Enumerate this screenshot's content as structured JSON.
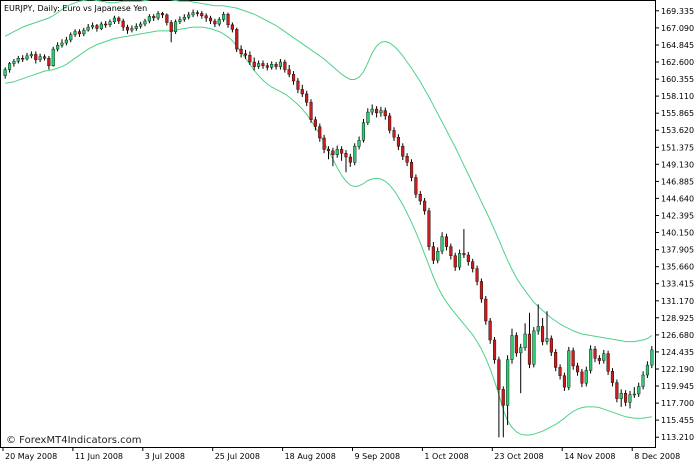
{
  "chart_data": {
    "type": "candlestick",
    "symbol_label": "EURJPY, Daily:  Euro vs Japanese Yen",
    "watermark": "© ForexMT4Indicators.com",
    "colors": {
      "bull": "#2ecc71",
      "bear": "#cc1b1b",
      "wick": "#000000",
      "band": "#4fd18a",
      "grid": "#000000",
      "background": "#ffffff"
    },
    "y_ticks": [
      "169.335",
      "167.090",
      "164.845",
      "162.600",
      "160.355",
      "158.110",
      "155.865",
      "153.620",
      "151.375",
      "149.130",
      "146.885",
      "144.640",
      "142.395",
      "140.150",
      "137.905",
      "135.660",
      "133.415",
      "131.170",
      "128.925",
      "126.680",
      "124.435",
      "122.190",
      "119.945",
      "117.700",
      "115.455",
      "113.210"
    ],
    "ylim": [
      112.05,
      170.5
    ],
    "x_ticks": [
      {
        "label": "20 May 2008",
        "index": 0
      },
      {
        "label": "11 Jun 2008",
        "index": 16
      },
      {
        "label": "3 Jul 2008",
        "index": 32
      },
      {
        "label": "25 Jul 2008",
        "index": 48
      },
      {
        "label": "18 Aug 2008",
        "index": 64
      },
      {
        "label": "9 Sep 2008",
        "index": 80
      },
      {
        "label": "1 Oct 2008",
        "index": 96
      },
      {
        "label": "23 Oct 2008",
        "index": 112
      },
      {
        "label": "14 Nov 2008",
        "index": 128
      },
      {
        "label": "8 Dec 2008",
        "index": 144
      }
    ],
    "ohlc_close": [
      162.0,
      162.4,
      162.7,
      163.1,
      163.0,
      163.4,
      163.6,
      162.9,
      163.3,
      163.1,
      162.1,
      164.3,
      164.8,
      165.1,
      165.5,
      166.2,
      166.6,
      166.3,
      166.8,
      167.2,
      167.4,
      167.0,
      167.6,
      167.5,
      167.9,
      168.4,
      168.0,
      167.2,
      166.8,
      167.0,
      167.3,
      167.6,
      168.0,
      168.6,
      168.4,
      169.0,
      168.8,
      167.8,
      166.6,
      167.9,
      168.2,
      168.5,
      168.8,
      169.1,
      169.0,
      168.7,
      168.4,
      168.0,
      167.6,
      168.2,
      168.9,
      167.5,
      166.9,
      164.3,
      163.7,
      163.5,
      162.6,
      162.0,
      162.4,
      162.1,
      161.9,
      162.3,
      162.0,
      162.6,
      161.6,
      161.0,
      160.1,
      159.0,
      158.4,
      157.3,
      155.0,
      154.1,
      152.6,
      151.1,
      150.9,
      150.4,
      151.1,
      150.6,
      150.1,
      149.4,
      151.5,
      152.3,
      154.6,
      156.0,
      156.4,
      155.9,
      156.2,
      155.5,
      153.6,
      152.7,
      151.5,
      150.2,
      149.4,
      147.4,
      145.2,
      144.3,
      143.0,
      138.3,
      136.5,
      137.7,
      139.6,
      138.3,
      137.1,
      135.6,
      137.4,
      137.2,
      136.3,
      135.4,
      133.7,
      131.4,
      128.5,
      126.0,
      123.4,
      119.5,
      117.4,
      123.4,
      126.6,
      124.3,
      125.0,
      126.8,
      122.8,
      127.2,
      127.8,
      125.8,
      126.2,
      124.4,
      122.4,
      121.3,
      119.8,
      124.6,
      122.6,
      121.8,
      120.3,
      122.0,
      124.8,
      123.6,
      123.3,
      124.2,
      121.9,
      120.4,
      118.3,
      119.0,
      117.8,
      118.8,
      118.9,
      119.9,
      121.4,
      122.7,
      124.7
    ],
    "candles": [
      [
        160.8,
        161.9,
        160.4,
        161.6
      ],
      [
        161.6,
        162.6,
        161.2,
        162.4
      ],
      [
        162.4,
        163.0,
        162.0,
        162.7
      ],
      [
        162.7,
        163.4,
        162.4,
        163.1
      ],
      [
        163.1,
        163.5,
        162.6,
        163.0
      ],
      [
        163.0,
        163.8,
        162.8,
        163.4
      ],
      [
        163.4,
        164.0,
        163.1,
        163.6
      ],
      [
        163.6,
        164.0,
        162.4,
        162.9
      ],
      [
        162.9,
        163.7,
        162.6,
        163.3
      ],
      [
        163.3,
        163.6,
        162.8,
        163.1
      ],
      [
        163.1,
        163.4,
        161.6,
        162.1
      ],
      [
        162.1,
        164.6,
        162.0,
        164.3
      ],
      [
        164.3,
        165.2,
        164.0,
        164.8
      ],
      [
        164.8,
        165.6,
        164.5,
        165.1
      ],
      [
        165.1,
        165.9,
        164.8,
        165.5
      ],
      [
        165.5,
        166.5,
        165.2,
        166.2
      ],
      [
        166.2,
        166.9,
        165.9,
        166.6
      ],
      [
        166.6,
        166.9,
        165.9,
        166.3
      ],
      [
        166.3,
        167.1,
        166.0,
        166.8
      ],
      [
        166.8,
        167.6,
        166.6,
        167.2
      ],
      [
        167.2,
        167.8,
        166.9,
        167.4
      ],
      [
        167.4,
        167.6,
        166.6,
        167.0
      ],
      [
        167.0,
        167.9,
        166.8,
        167.6
      ],
      [
        167.6,
        168.0,
        167.1,
        167.5
      ],
      [
        167.5,
        168.2,
        167.2,
        167.9
      ],
      [
        167.9,
        168.7,
        167.6,
        168.4
      ],
      [
        168.4,
        168.6,
        167.6,
        168.0
      ],
      [
        168.0,
        168.3,
        166.7,
        167.2
      ],
      [
        167.2,
        167.5,
        166.3,
        166.8
      ],
      [
        166.8,
        167.4,
        166.5,
        167.0
      ],
      [
        167.0,
        167.7,
        166.7,
        167.3
      ],
      [
        167.3,
        167.9,
        167.0,
        167.6
      ],
      [
        167.6,
        168.3,
        167.3,
        168.0
      ],
      [
        168.0,
        168.9,
        167.7,
        168.6
      ],
      [
        168.6,
        168.9,
        168.0,
        168.4
      ],
      [
        168.4,
        169.3,
        168.1,
        169.0
      ],
      [
        169.0,
        169.2,
        168.4,
        168.8
      ],
      [
        168.8,
        169.0,
        167.4,
        167.8
      ],
      [
        167.8,
        168.1,
        165.2,
        166.6
      ],
      [
        166.6,
        168.2,
        166.3,
        167.9
      ],
      [
        167.9,
        168.6,
        167.6,
        168.2
      ],
      [
        168.2,
        168.9,
        167.9,
        168.5
      ],
      [
        168.5,
        169.2,
        168.2,
        168.8
      ],
      [
        168.8,
        169.5,
        168.5,
        169.1
      ],
      [
        169.1,
        169.4,
        168.6,
        169.0
      ],
      [
        169.0,
        169.3,
        168.3,
        168.7
      ],
      [
        168.7,
        169.0,
        167.9,
        168.4
      ],
      [
        168.4,
        168.7,
        167.6,
        168.0
      ],
      [
        168.0,
        168.3,
        167.2,
        167.6
      ],
      [
        167.6,
        168.5,
        167.3,
        168.2
      ],
      [
        168.2,
        169.2,
        167.9,
        168.9
      ],
      [
        168.9,
        169.1,
        167.1,
        167.5
      ],
      [
        167.5,
        167.8,
        166.5,
        166.9
      ],
      [
        166.9,
        167.1,
        163.9,
        164.3
      ],
      [
        164.3,
        164.8,
        163.2,
        163.7
      ],
      [
        163.7,
        164.2,
        163.0,
        163.5
      ],
      [
        163.5,
        164.0,
        162.2,
        162.6
      ],
      [
        162.6,
        163.2,
        161.5,
        162.0
      ],
      [
        162.0,
        162.8,
        161.7,
        162.4
      ],
      [
        162.4,
        162.8,
        161.7,
        162.1
      ],
      [
        162.1,
        162.5,
        161.5,
        161.9
      ],
      [
        161.9,
        162.7,
        161.6,
        162.3
      ],
      [
        162.3,
        162.6,
        161.6,
        162.0
      ],
      [
        162.0,
        163.0,
        161.6,
        162.6
      ],
      [
        162.6,
        162.9,
        161.2,
        161.6
      ],
      [
        161.6,
        162.2,
        160.6,
        161.0
      ],
      [
        161.0,
        161.4,
        159.6,
        160.1
      ],
      [
        160.1,
        160.5,
        158.5,
        159.0
      ],
      [
        159.0,
        159.6,
        158.0,
        158.4
      ],
      [
        158.4,
        158.8,
        156.8,
        157.3
      ],
      [
        157.3,
        157.7,
        154.6,
        155.0
      ],
      [
        155.0,
        155.4,
        153.6,
        154.1
      ],
      [
        154.1,
        154.5,
        152.1,
        152.6
      ],
      [
        152.6,
        153.0,
        150.6,
        151.1
      ],
      [
        151.1,
        151.5,
        149.8,
        150.9
      ],
      [
        150.9,
        151.3,
        148.9,
        150.4
      ],
      [
        150.4,
        151.6,
        150.0,
        151.1
      ],
      [
        151.1,
        151.5,
        149.6,
        150.6
      ],
      [
        150.6,
        151.0,
        148.1,
        150.1
      ],
      [
        150.1,
        150.5,
        148.8,
        149.4
      ],
      [
        149.4,
        151.9,
        149.0,
        151.5
      ],
      [
        151.5,
        152.8,
        151.1,
        152.3
      ],
      [
        152.3,
        155.1,
        152.0,
        154.6
      ],
      [
        154.6,
        156.5,
        154.3,
        156.0
      ],
      [
        156.0,
        157.0,
        155.6,
        156.4
      ],
      [
        156.4,
        156.8,
        155.3,
        155.9
      ],
      [
        155.9,
        156.7,
        155.4,
        156.2
      ],
      [
        156.2,
        156.6,
        155.0,
        155.5
      ],
      [
        155.5,
        155.9,
        153.2,
        153.6
      ],
      [
        153.6,
        154.0,
        152.2,
        152.7
      ],
      [
        152.7,
        153.1,
        151.0,
        151.5
      ],
      [
        151.5,
        151.9,
        149.7,
        150.2
      ],
      [
        150.2,
        150.6,
        148.9,
        149.4
      ],
      [
        149.4,
        149.8,
        146.9,
        147.4
      ],
      [
        147.4,
        147.8,
        144.7,
        145.2
      ],
      [
        145.2,
        145.6,
        143.8,
        144.3
      ],
      [
        144.3,
        144.7,
        142.5,
        143.0
      ],
      [
        143.0,
        143.4,
        137.8,
        138.3
      ],
      [
        138.3,
        138.9,
        136.0,
        136.5
      ],
      [
        136.5,
        138.2,
        136.1,
        137.7
      ],
      [
        137.7,
        140.2,
        137.3,
        139.6
      ],
      [
        139.6,
        140.0,
        137.8,
        138.3
      ],
      [
        138.3,
        138.7,
        136.6,
        137.1
      ],
      [
        137.1,
        137.5,
        135.1,
        135.6
      ],
      [
        135.6,
        137.9,
        135.2,
        137.4
      ],
      [
        137.4,
        140.6,
        136.8,
        137.2
      ],
      [
        137.2,
        137.6,
        135.8,
        136.3
      ],
      [
        136.3,
        136.7,
        134.9,
        135.4
      ],
      [
        135.4,
        135.8,
        133.2,
        133.7
      ],
      [
        133.7,
        134.1,
        130.9,
        131.4
      ],
      [
        131.4,
        131.8,
        128.0,
        128.5
      ],
      [
        128.5,
        128.9,
        125.5,
        126.0
      ],
      [
        126.0,
        126.4,
        122.9,
        123.4
      ],
      [
        123.4,
        123.8,
        113.2,
        119.5
      ],
      [
        119.5,
        119.9,
        113.2,
        117.4
      ],
      [
        117.4,
        124.0,
        114.8,
        123.4
      ],
      [
        123.4,
        127.5,
        122.9,
        126.6
      ],
      [
        126.6,
        127.0,
        123.8,
        124.3
      ],
      [
        124.3,
        125.5,
        119.0,
        125.0
      ],
      [
        125.0,
        128.2,
        124.6,
        126.8
      ],
      [
        126.8,
        129.6,
        122.3,
        122.8
      ],
      [
        122.8,
        127.7,
        122.4,
        127.2
      ],
      [
        127.2,
        130.7,
        126.7,
        127.8
      ],
      [
        127.8,
        128.9,
        125.3,
        125.8
      ],
      [
        125.8,
        129.8,
        125.4,
        126.2
      ],
      [
        126.2,
        126.6,
        123.9,
        124.4
      ],
      [
        124.4,
        124.8,
        121.9,
        122.4
      ],
      [
        122.4,
        122.8,
        120.8,
        121.3
      ],
      [
        121.3,
        121.7,
        119.3,
        119.8
      ],
      [
        119.8,
        125.1,
        119.4,
        124.6
      ],
      [
        124.6,
        125.0,
        122.1,
        122.6
      ],
      [
        122.6,
        123.0,
        121.3,
        121.8
      ],
      [
        121.8,
        122.2,
        119.8,
        120.3
      ],
      [
        120.3,
        122.5,
        119.9,
        122.0
      ],
      [
        122.0,
        125.3,
        121.6,
        124.8
      ],
      [
        124.8,
        125.2,
        123.1,
        123.6
      ],
      [
        123.6,
        124.0,
        122.8,
        123.3
      ],
      [
        123.3,
        124.7,
        122.9,
        124.2
      ],
      [
        124.2,
        124.6,
        121.4,
        121.9
      ],
      [
        121.9,
        122.3,
        119.9,
        120.4
      ],
      [
        120.4,
        120.8,
        117.8,
        118.3
      ],
      [
        118.3,
        119.5,
        117.2,
        119.0
      ],
      [
        119.0,
        119.4,
        117.3,
        117.8
      ],
      [
        117.8,
        119.3,
        117.0,
        118.8
      ],
      [
        118.8,
        119.8,
        118.4,
        118.9
      ],
      [
        118.9,
        120.4,
        118.5,
        119.9
      ],
      [
        119.9,
        121.9,
        119.5,
        121.4
      ],
      [
        121.4,
        123.2,
        121.0,
        122.7
      ],
      [
        122.7,
        125.2,
        122.3,
        124.7
      ]
    ],
    "band_upper": [
      166.0,
      166.3,
      166.6,
      166.9,
      167.2,
      167.4,
      167.6,
      167.8,
      168.0,
      168.2,
      168.4,
      168.7,
      169.1,
      169.5,
      169.9,
      170.2,
      170.4,
      170.6,
      170.7,
      170.8,
      170.8,
      170.7,
      170.6,
      170.5,
      170.4,
      170.4,
      170.5,
      170.6,
      170.6,
      170.6,
      170.6,
      170.6,
      170.7,
      170.8,
      170.9,
      171.0,
      171.0,
      170.9,
      170.8,
      170.7,
      170.6,
      170.6,
      170.6,
      170.5,
      170.4,
      170.3,
      170.2,
      170.1,
      170.0,
      170.0,
      170.0,
      169.9,
      169.8,
      169.7,
      169.5,
      169.3,
      169.1,
      168.9,
      168.6,
      168.3,
      168.0,
      167.7,
      167.4,
      167.0,
      166.6,
      166.2,
      165.8,
      165.4,
      165.0,
      164.6,
      164.2,
      163.8,
      163.4,
      163.0,
      162.5,
      162.0,
      161.5,
      161.0,
      160.6,
      160.3,
      160.3,
      160.6,
      161.3,
      162.5,
      163.8,
      164.7,
      165.2,
      165.3,
      165.1,
      164.7,
      164.1,
      163.4,
      162.6,
      161.8,
      160.9,
      160.0,
      159.0,
      158.0,
      156.9,
      155.8,
      154.7,
      153.6,
      152.5,
      151.4,
      150.2,
      149.0,
      147.8,
      146.6,
      145.4,
      144.2,
      143.0,
      141.8,
      140.5,
      139.2,
      137.8,
      136.5,
      135.3,
      134.2,
      133.3,
      132.5,
      131.7,
      131.0,
      130.4,
      129.9,
      129.4,
      128.9,
      128.5,
      128.1,
      127.8,
      127.5,
      127.2,
      127.0,
      126.8,
      126.7,
      126.6,
      126.5,
      126.4,
      126.3,
      126.2,
      126.1,
      126.0,
      125.9,
      125.8,
      125.8,
      125.8,
      125.9,
      126.0,
      126.2,
      126.6
    ],
    "band_lower": [
      159.8,
      159.9,
      160.0,
      160.2,
      160.4,
      160.6,
      160.8,
      161.0,
      161.2,
      161.4,
      161.5,
      161.6,
      161.8,
      162.0,
      162.3,
      162.7,
      163.1,
      163.5,
      163.9,
      164.3,
      164.6,
      164.9,
      165.1,
      165.3,
      165.5,
      165.7,
      165.8,
      165.9,
      166.0,
      166.1,
      166.2,
      166.3,
      166.4,
      166.5,
      166.6,
      166.7,
      166.7,
      166.7,
      166.7,
      166.8,
      166.9,
      167.0,
      167.1,
      167.2,
      167.2,
      167.2,
      167.1,
      167.0,
      166.8,
      166.6,
      166.3,
      165.9,
      165.4,
      164.7,
      163.9,
      163.1,
      162.3,
      161.5,
      160.8,
      160.2,
      159.7,
      159.3,
      159.0,
      158.7,
      158.4,
      158.0,
      157.5,
      157.0,
      156.4,
      155.7,
      154.9,
      154.0,
      153.0,
      152.0,
      150.9,
      149.8,
      148.7,
      147.7,
      146.9,
      146.4,
      146.2,
      146.3,
      146.6,
      147.0,
      147.2,
      147.3,
      147.2,
      146.9,
      146.4,
      145.7,
      144.8,
      143.8,
      142.7,
      141.5,
      140.2,
      138.8,
      137.3,
      135.8,
      134.3,
      133.0,
      131.9,
      131.0,
      130.2,
      129.5,
      128.8,
      128.1,
      127.4,
      126.7,
      125.8,
      124.8,
      123.6,
      122.2,
      120.6,
      118.8,
      116.8,
      115.4,
      114.5,
      113.9,
      113.6,
      113.5,
      113.5,
      113.6,
      113.8,
      114.0,
      114.3,
      114.6,
      114.9,
      115.3,
      115.7,
      116.2,
      116.6,
      116.9,
      117.1,
      117.2,
      117.2,
      117.2,
      117.1,
      116.9,
      116.7,
      116.5,
      116.3,
      116.1,
      115.9,
      115.8,
      115.7,
      115.7,
      115.7,
      115.8,
      115.9
    ]
  }
}
